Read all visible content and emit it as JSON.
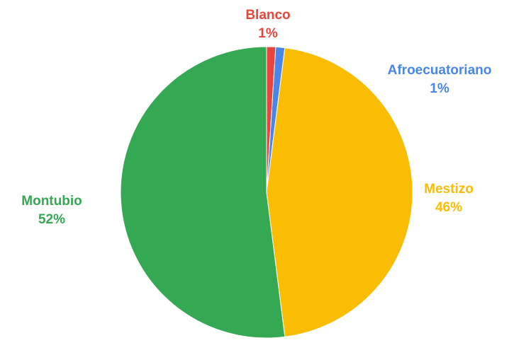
{
  "chart_data": {
    "type": "pie",
    "title": "",
    "start_angle_deg": 0,
    "direction": "clockwise",
    "slices": [
      {
        "label": "Blanco",
        "value": 1,
        "value_label": "1%",
        "color": "#e8453c"
      },
      {
        "label": "Afroecuatoriano",
        "value": 1,
        "value_label": "1%",
        "color": "#4a86e8"
      },
      {
        "label": "Mestizo",
        "value": 46,
        "value_label": "46%",
        "color": "#fbbc04"
      },
      {
        "label": "Montubio",
        "value": 52,
        "value_label": "52%",
        "color": "#34a853"
      }
    ],
    "legend": "none",
    "labels_position": "outside"
  }
}
